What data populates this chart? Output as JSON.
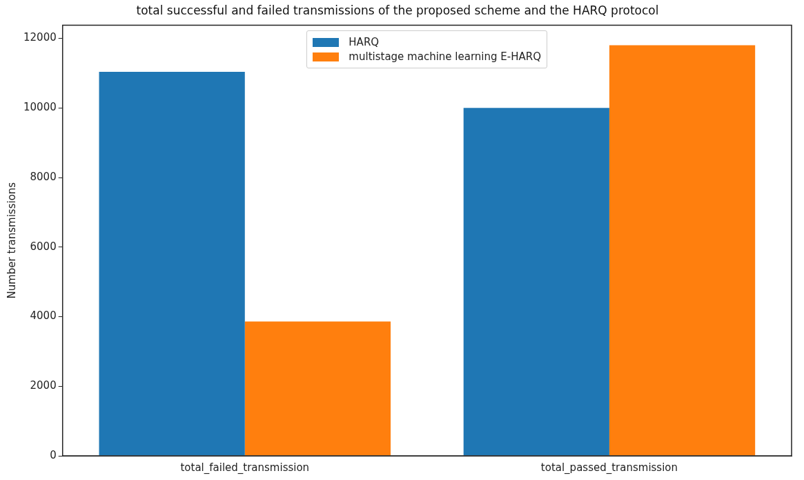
{
  "chart_data": {
    "type": "bar",
    "title": "total successful and failed transmissions of the proposed scheme and the HARQ protocol",
    "ylabel": "Number transmissions",
    "categories": [
      "total_failed_transmission",
      "total_passed_transmission"
    ],
    "series": [
      {
        "name": "HARQ",
        "color": "#1f77b4",
        "values": [
          11040,
          10000
        ]
      },
      {
        "name": "multistage machine learning E-HARQ",
        "color": "#ff7f0e",
        "values": [
          3860,
          11800
        ]
      }
    ],
    "ylim": [
      0,
      12380
    ],
    "yticks": [
      0,
      2000,
      4000,
      6000,
      8000,
      10000,
      12000
    ],
    "grid": false,
    "legend": "top"
  }
}
